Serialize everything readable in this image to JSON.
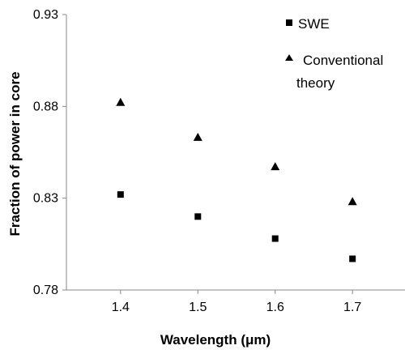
{
  "chart_data": {
    "type": "scatter",
    "xlabel": "Wavelength (μm)",
    "ylabel": "Fraction of power in core",
    "xlim": [
      1.33,
      1.77
    ],
    "ylim": [
      0.78,
      0.93
    ],
    "x_ticks": [
      "1.4",
      "1.5",
      "1.6",
      "1.7"
    ],
    "y_ticks": [
      "0.78",
      "0.83",
      "0.88",
      "0.93"
    ],
    "grid": false,
    "legend_position": "top-right",
    "series": [
      {
        "name": "SWE",
        "marker": "square",
        "color": "#000000",
        "x": [
          1.4,
          1.5,
          1.6,
          1.7
        ],
        "y": [
          0.832,
          0.82,
          0.808,
          0.797
        ]
      },
      {
        "name_lines": [
          "Conventional",
          "theory"
        ],
        "marker": "triangle",
        "color": "#000000",
        "x": [
          1.4,
          1.5,
          1.6,
          1.7
        ],
        "y": [
          0.882,
          0.863,
          0.847,
          0.828
        ]
      }
    ]
  }
}
